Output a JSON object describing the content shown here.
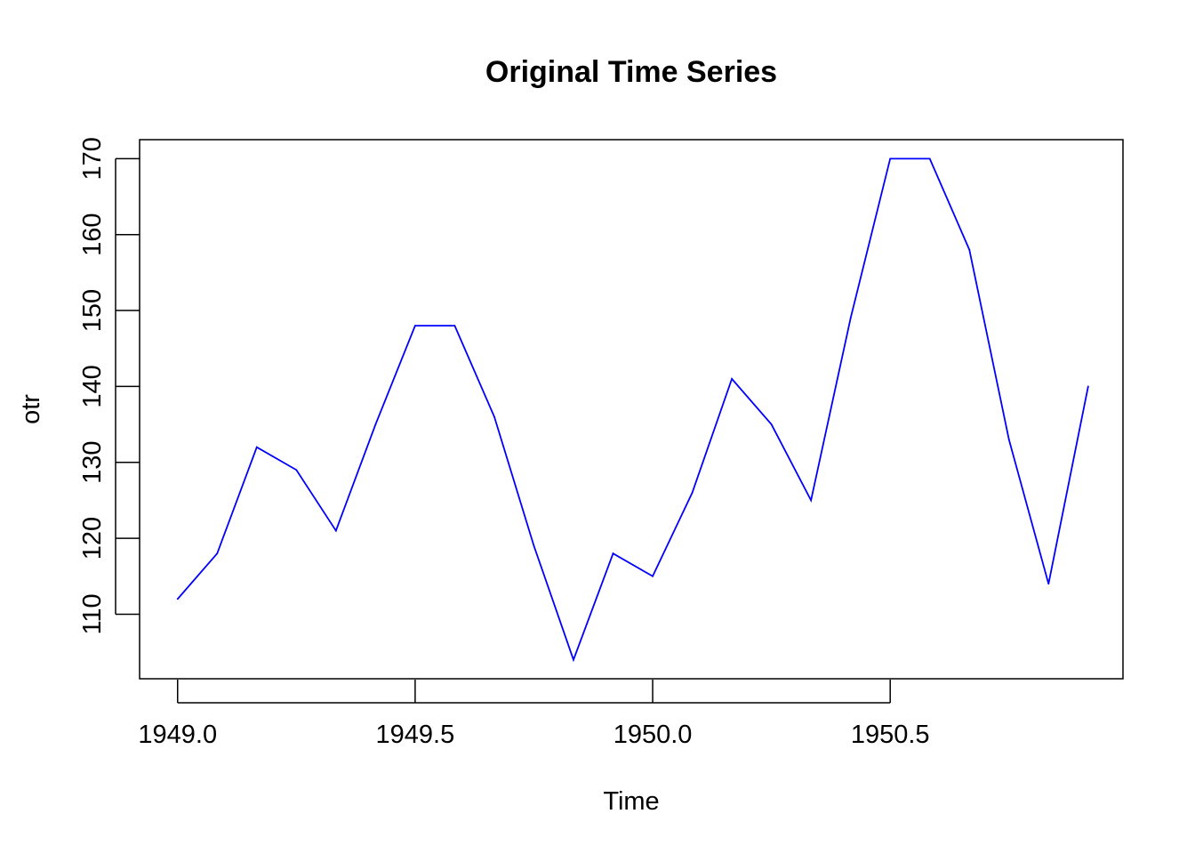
{
  "chart_data": {
    "type": "line",
    "title": "Original Time Series",
    "xlabel": "Time",
    "ylabel": "otr",
    "xlim": [
      1948.92,
      1950.99
    ],
    "ylim": [
      101.5,
      172.5
    ],
    "x_ticks": [
      1949.0,
      1949.5,
      1950.0,
      1950.5
    ],
    "x_tick_labels": [
      "1949.0",
      "1949.5",
      "1950.0",
      "1950.5"
    ],
    "y_ticks": [
      110,
      120,
      130,
      140,
      150,
      160,
      170
    ],
    "y_tick_labels": [
      "110",
      "120",
      "130",
      "140",
      "150",
      "160",
      "170"
    ],
    "grid": false,
    "series": [
      {
        "color": "#0000ff",
        "x": [
          1949.0,
          1949.0833,
          1949.1667,
          1949.25,
          1949.3333,
          1949.4167,
          1949.5,
          1949.5833,
          1949.6667,
          1949.75,
          1949.8333,
          1949.9167,
          1950.0,
          1950.0833,
          1950.1667,
          1950.25,
          1950.3333,
          1950.4167,
          1950.5,
          1950.5833,
          1950.6667,
          1950.75,
          1950.8333,
          1950.9167
        ],
        "values": [
          112,
          118,
          132,
          129,
          121,
          135,
          148,
          148,
          136,
          119,
          104,
          118,
          115,
          126,
          141,
          135,
          125,
          149,
          170,
          170,
          158,
          133,
          114,
          140
        ]
      }
    ]
  }
}
